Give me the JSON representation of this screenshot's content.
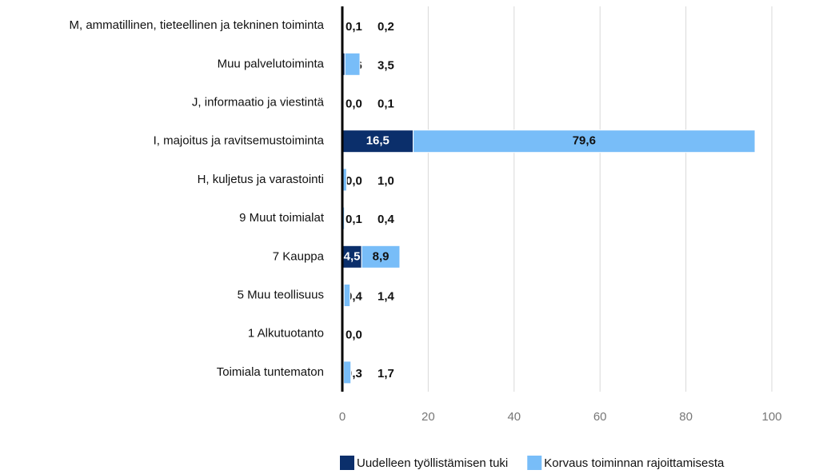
{
  "chart_data": {
    "type": "stacked-barh",
    "categories": [
      "M, ammatillinen, tieteellinen ja tekninen toiminta",
      "Muu palvelutoiminta",
      "J, informaatio ja viestintä",
      "I, majoitus ja ravitsemustoiminta",
      "H, kuljetus ja varastointi",
      "9 Muut toimialat",
      "7 Kauppa",
      "5 Muu teollisuus",
      "1 Alkutuotanto",
      "Toimiala tuntematon"
    ],
    "series": [
      {
        "name": "Uudelleen työllistämisen tuki",
        "color": "#0b2f6b",
        "values": [
          0.1,
          0.6,
          0.0,
          16.5,
          0.0,
          0.1,
          4.5,
          0.4,
          0.0,
          0.3
        ],
        "value_labels": [
          "0,1",
          "0,6",
          "0,0",
          "16,5",
          "0,0",
          "0,1",
          "4,5",
          "0,4",
          "0,0",
          "0,3"
        ]
      },
      {
        "name": "Korvaus toiminnan rajoittamisesta",
        "color": "#78bdf8",
        "values": [
          0.2,
          3.5,
          0.1,
          79.6,
          1.0,
          0.4,
          8.9,
          1.4,
          null,
          1.7
        ],
        "value_labels": [
          "0,2",
          "3,5",
          "0,1",
          "79,6",
          "1,0",
          "0,4",
          "8,9",
          "1,4",
          null,
          "1,7"
        ]
      }
    ],
    "xlim": [
      0,
      100
    ],
    "xticks": [
      0,
      20,
      40,
      60,
      80,
      100
    ],
    "grid": true,
    "legend": "bottom"
  }
}
